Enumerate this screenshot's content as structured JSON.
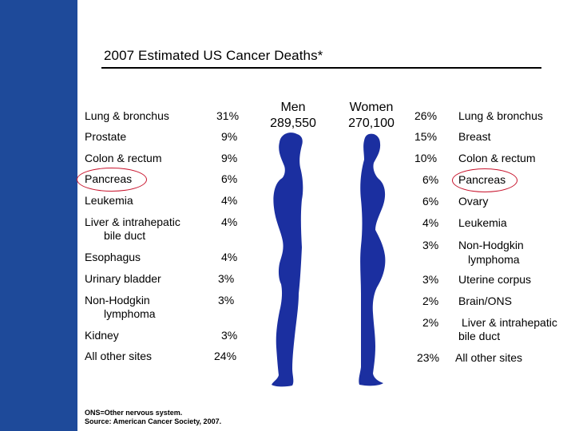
{
  "colors": {
    "sidebar": "#1e4a9a",
    "silhouette": "#1b2fa0",
    "highlight_circle": "#c8142d"
  },
  "title": "2007 Estimated US Cancer Deaths*",
  "men": {
    "header_line1": "Men",
    "header_line2": "289,550",
    "rows": [
      {
        "site_line1": "Lung & bronchus",
        "site_line2": "",
        "percent": "31%"
      },
      {
        "site_line1": "Prostate",
        "site_line2": "",
        "percent": "9%"
      },
      {
        "site_line1": "Colon & rectum",
        "site_line2": "",
        "percent": "9%"
      },
      {
        "site_line1": "Pancreas",
        "site_line2": "",
        "percent": "6%",
        "highlighted": true
      },
      {
        "site_line1": "Leukemia",
        "site_line2": "",
        "percent": "4%"
      },
      {
        "site_line1": "Liver & intrahepatic",
        "site_line2": "bile duct",
        "percent": "4%"
      },
      {
        "site_line1": "Esophagus",
        "site_line2": "",
        "percent": "4%"
      },
      {
        "site_line1": "Urinary bladder",
        "site_line2": "",
        "percent": "3%"
      },
      {
        "site_line1": "Non-Hodgkin",
        "site_line2": "lymphoma",
        "percent": "3%"
      },
      {
        "site_line1": "Kidney",
        "site_line2": "",
        "percent": "3%"
      },
      {
        "site_line1": "All other sites",
        "site_line2": "",
        "percent": "24%"
      }
    ]
  },
  "women": {
    "header_line1": "Women",
    "header_line2": "270,100",
    "rows": [
      {
        "percent": "26%",
        "site_line1": "Lung & bronchus",
        "site_line2": ""
      },
      {
        "percent": "15%",
        "site_line1": "Breast",
        "site_line2": ""
      },
      {
        "percent": "10%",
        "site_line1": "Colon & rectum",
        "site_line2": ""
      },
      {
        "percent": "6%",
        "site_line1": "Pancreas",
        "site_line2": "",
        "highlighted": true
      },
      {
        "percent": "6%",
        "site_line1": "Ovary",
        "site_line2": ""
      },
      {
        "percent": "4%",
        "site_line1": "Leukemia",
        "site_line2": ""
      },
      {
        "percent": "3%",
        "site_line1": "Non-Hodgkin",
        "site_line2": "lymphoma"
      },
      {
        "percent": "3%",
        "site_line1": "Uterine corpus",
        "site_line2": ""
      },
      {
        "percent": "2%",
        "site_line1": "Brain/ONS",
        "site_line2": ""
      },
      {
        "percent": "2%",
        "site_line1": "Liver & intrahepatic",
        "site_line2": "bile duct"
      },
      {
        "percent": "23%",
        "site_line1": "All other sites",
        "site_line2": ""
      }
    ]
  },
  "footnote_line1": "ONS=Other nervous system.",
  "footnote_line2": "Source: American Cancer Society, 2007."
}
